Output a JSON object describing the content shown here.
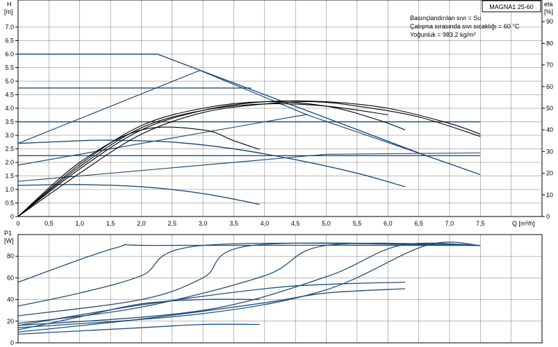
{
  "chart_data": [
    {
      "type": "line",
      "title": "MAGNA1 25-60",
      "annotations": [
        "Basınçlandırılan sıvı = Su",
        "Çalışma sırasında sıvı sıcaklığı = 60 °C",
        "Yoğunluk = 983.2 kg/m³"
      ],
      "xlabel": "Q [m³/h]",
      "ylabel": "H",
      "ylabel_unit": "[m]",
      "y2label": "eta",
      "y2label_unit": "[%]",
      "xlim": [
        0,
        8.5
      ],
      "ylim": [
        0,
        8.0
      ],
      "y2lim": [
        0,
        100
      ],
      "grid": true,
      "x_ticks": [
        0,
        0.5,
        1.0,
        1.5,
        2.0,
        2.5,
        3.0,
        3.5,
        4.0,
        4.5,
        5.0,
        5.5,
        6.0,
        6.5,
        7.0,
        7.5
      ],
      "x_tick_labels": [
        "0",
        "0,5",
        "1,0",
        "1,5",
        "2,0",
        "2,5",
        "3,0",
        "3,5",
        "4,0",
        "4,5",
        "5,0",
        "5,5",
        "6,0",
        "6,5",
        "7,0",
        "7,5"
      ],
      "y_ticks": [
        0,
        0.5,
        1.0,
        1.5,
        2.0,
        2.5,
        3.0,
        3.5,
        4.0,
        4.5,
        5.0,
        5.5,
        6.0,
        6.5,
        7.0
      ],
      "y_tick_labels": [
        "0",
        "0.5",
        "1.0",
        "1.5",
        "2.0",
        "2.5",
        "3.0",
        "3.5",
        "4.0",
        "4.5",
        "5.0",
        "5.5",
        "6.0",
        "6.5",
        "7.0"
      ],
      "y2_ticks": [
        0,
        10,
        20,
        30,
        40,
        50,
        60,
        70,
        80,
        90
      ],
      "y2_tick_labels": [
        "0",
        "10",
        "20",
        "30",
        "40",
        "50",
        "60",
        "70",
        "80",
        "90"
      ],
      "head_curves": [
        {
          "color": "#1f4e79",
          "x": [
            0,
            2.26,
            6.62,
            7.5
          ],
          "y": [
            6.0,
            6.0,
            2.25,
            1.55
          ]
        },
        {
          "color": "#1f4e79",
          "x": [
            0,
            3.78
          ],
          "y": [
            4.75,
            4.75
          ]
        },
        {
          "color": "#1f4e79",
          "x": [
            0,
            7.5
          ],
          "y": [
            3.5,
            3.5
          ]
        },
        {
          "color": "#1f4e79",
          "x": [
            0,
            7.5
          ],
          "y": [
            2.25,
            2.25
          ]
        },
        {
          "color": "#1f4e79",
          "x": [
            0,
            1.0,
            1.5,
            2.5,
            3.5,
            4.5,
            5.5,
            6.28
          ],
          "y": [
            2.7,
            2.8,
            2.82,
            2.75,
            2.5,
            2.1,
            1.6,
            1.1
          ]
        },
        {
          "color": "#1f4e79",
          "x": [
            0,
            1.0,
            2.0,
            3.0,
            3.92
          ],
          "y": [
            1.15,
            1.18,
            1.1,
            0.85,
            0.45
          ]
        }
      ],
      "proportional_curves": [
        {
          "color": "#1f4e79",
          "x": [
            0,
            2.95,
            4.7,
            6.62
          ],
          "y": [
            2.7,
            5.4,
            3.75,
            2.25
          ]
        },
        {
          "color": "#1f4e79",
          "x": [
            0,
            4.7
          ],
          "y": [
            1.9,
            3.78
          ]
        },
        {
          "color": "#1f4e79",
          "x": [
            0,
            2.5,
            5.0,
            7.5
          ],
          "y": [
            1.3,
            1.8,
            2.3,
            2.35
          ]
        }
      ],
      "efficiency_curves": [
        {
          "color": "#000000",
          "x": [
            0,
            1.0,
            2.0,
            3.0,
            4.0,
            4.8,
            5.5,
            6.5,
            7.5
          ],
          "y": [
            0,
            20,
            38,
            48,
            52,
            53,
            51,
            46,
            37
          ]
        },
        {
          "color": "#000000",
          "x": [
            0,
            1.0,
            2.0,
            3.0,
            4.0,
            5.0,
            6.0,
            7.0,
            7.5
          ],
          "y": [
            0,
            22,
            40,
            49,
            53,
            53,
            50,
            43,
            38
          ]
        },
        {
          "color": "#000000",
          "x": [
            0,
            1.0,
            2.0,
            3.0,
            4.0,
            5.0,
            5.8,
            6.28
          ],
          "y": [
            0,
            24,
            42,
            50,
            53,
            51,
            45,
            40
          ]
        },
        {
          "color": "#000000",
          "x": [
            0,
            1.0,
            2.0,
            3.0,
            3.5,
            3.92
          ],
          "y": [
            0,
            25,
            40,
            40,
            35,
            31
          ]
        },
        {
          "color": "#000000",
          "x": [
            0,
            1.0,
            2.0,
            3.0,
            4.0,
            5.0,
            6.0
          ],
          "y": [
            0,
            23,
            41,
            49,
            52,
            51,
            47
          ]
        }
      ]
    },
    {
      "type": "line",
      "ylabel": "P1",
      "ylabel_unit": "[W]",
      "xlim": [
        0,
        8.5
      ],
      "ylim": [
        0,
        100
      ],
      "grid": true,
      "y_ticks": [
        0,
        20,
        40,
        60,
        80
      ],
      "y_tick_labels": [
        "0",
        "20",
        "40",
        "60",
        "80"
      ],
      "power_curves": [
        {
          "color": "#1f4e79",
          "x": [
            0,
            1.6,
            2.3,
            7.5
          ],
          "y": [
            56,
            88,
            90,
            90
          ]
        },
        {
          "color": "#1f4e79",
          "x": [
            0,
            1.0,
            2.0,
            3.0,
            7.5
          ],
          "y": [
            34,
            46,
            62,
            90,
            90
          ]
        },
        {
          "color": "#1f4e79",
          "x": [
            0,
            2.0,
            3.0,
            3.8,
            7.5
          ],
          "y": [
            25,
            40,
            60,
            90,
            90
          ]
        },
        {
          "color": "#1f4e79",
          "x": [
            0,
            2.0,
            4.0,
            5.0,
            7.5
          ],
          "y": [
            18,
            33,
            62,
            90,
            90
          ]
        },
        {
          "color": "#1f4e79",
          "x": [
            0,
            3.0,
            5.0,
            6.2,
            7.5
          ],
          "y": [
            16,
            30,
            61,
            90,
            90
          ]
        },
        {
          "color": "#1f4e79",
          "x": [
            0,
            3.0,
            5.0,
            6.62,
            7.5
          ],
          "y": [
            14,
            27,
            49,
            90,
            90
          ]
        },
        {
          "color": "#1f4e79",
          "x": [
            0,
            2.0,
            4.0,
            5.0,
            6.28
          ],
          "y": [
            16,
            35,
            50,
            54,
            56
          ]
        },
        {
          "color": "#1f4e79",
          "x": [
            0,
            1.0,
            2.0,
            3.0,
            3.92
          ],
          "y": [
            12,
            24,
            36,
            40,
            40
          ]
        },
        {
          "color": "#1f4e79",
          "x": [
            0,
            2.0,
            4.0,
            5.0,
            6.28
          ],
          "y": [
            10,
            22,
            37,
            46,
            50
          ]
        },
        {
          "color": "#1f4e79",
          "x": [
            0,
            2.0,
            3.0,
            3.92
          ],
          "y": [
            8,
            14,
            17,
            17
          ]
        }
      ]
    }
  ]
}
